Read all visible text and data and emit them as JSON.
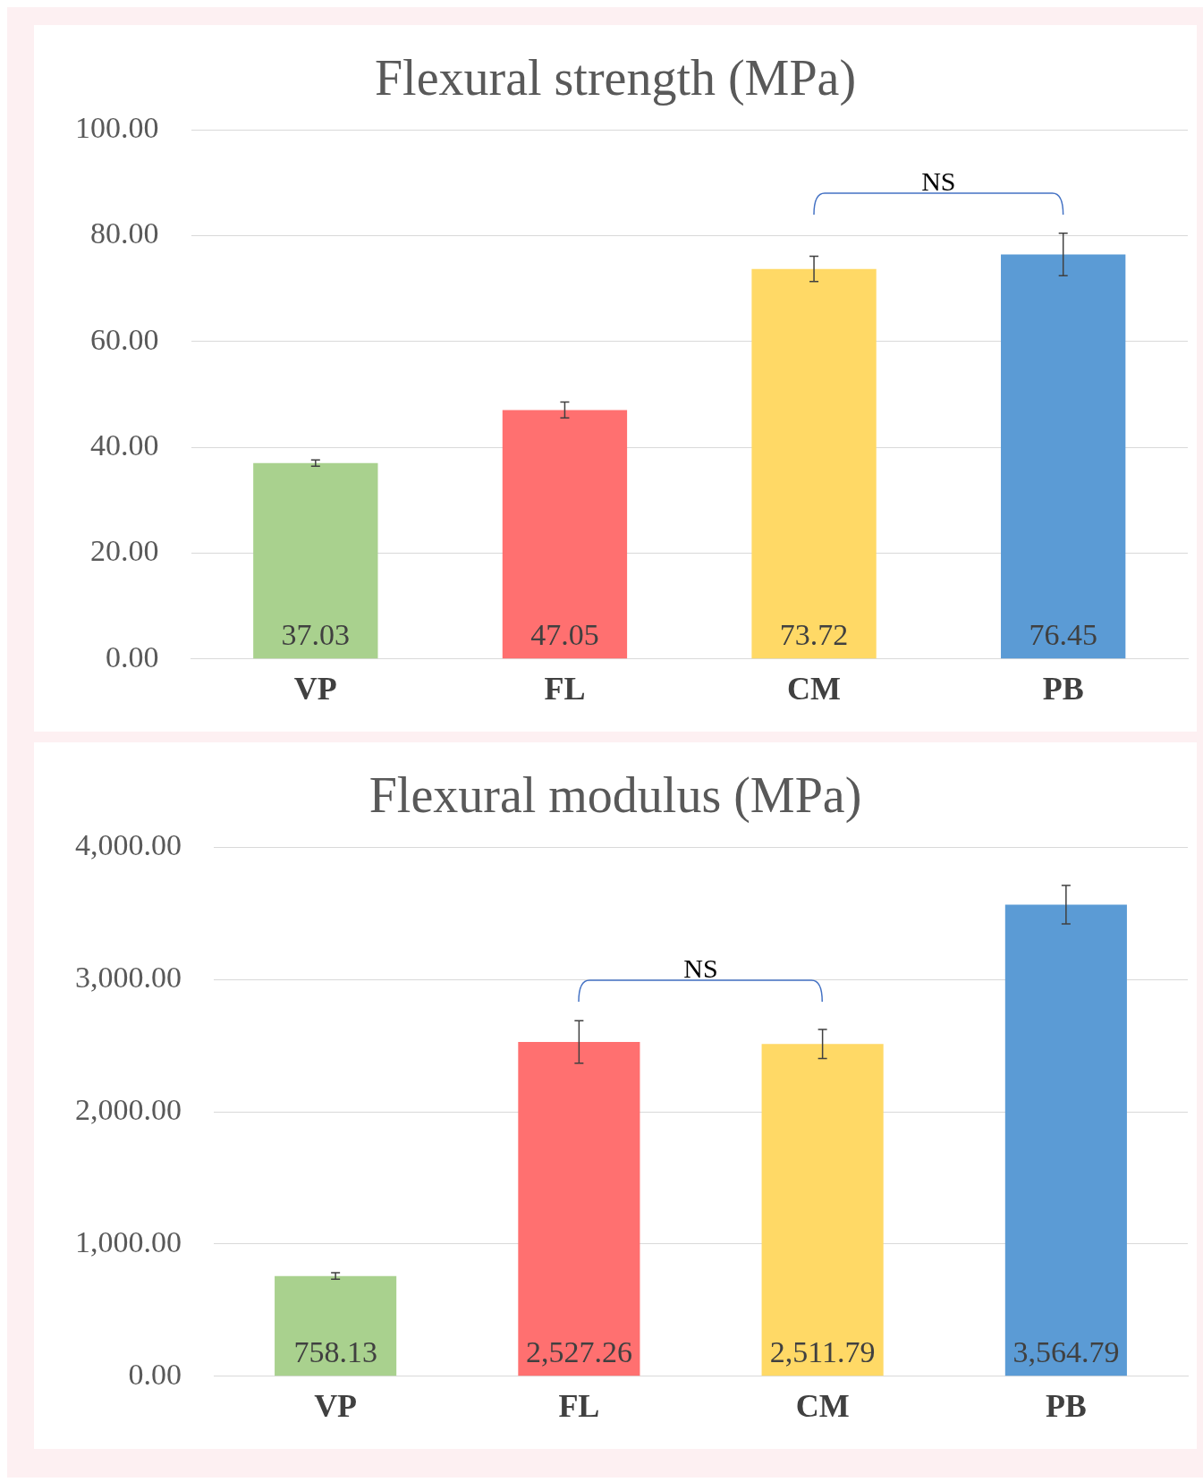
{
  "chart_data": [
    {
      "type": "bar",
      "title": "Flexural strength (MPa)",
      "categories": [
        "VP",
        "FL",
        "CM",
        "PB"
      ],
      "values": [
        37.03,
        47.05,
        73.72,
        76.45
      ],
      "colors": [
        "#a9d18e",
        "#ff7070",
        "#ffd966",
        "#5b9bd5"
      ],
      "errors": [
        0.6,
        1.5,
        2.4,
        4.0
      ],
      "value_labels": [
        "37.03",
        "47.05",
        "73.72",
        "76.45"
      ],
      "ylim": [
        0,
        100
      ],
      "yticks": [
        {
          "value": 0,
          "label": "0.00"
        },
        {
          "value": 20,
          "label": "20.00"
        },
        {
          "value": 40,
          "label": "40.00"
        },
        {
          "value": 60,
          "label": "60.00"
        },
        {
          "value": 80,
          "label": "80.00"
        },
        {
          "value": 100,
          "label": "100.00"
        }
      ],
      "grid": "y",
      "legend": false,
      "annotations": [
        "NS"
      ]
    },
    {
      "type": "bar",
      "title": "Flexural modulus (MPa)",
      "categories": [
        "VP",
        "FL",
        "CM",
        "PB"
      ],
      "values": [
        758.13,
        2527.26,
        2511.79,
        3564.79
      ],
      "colors": [
        "#a9d18e",
        "#ff7070",
        "#ffd966",
        "#5b9bd5"
      ],
      "errors": [
        25,
        160,
        110,
        145
      ],
      "value_labels": [
        "758.13",
        "2,527.26",
        "2,511.79",
        "3,564.79"
      ],
      "ylim": [
        0,
        4000
      ],
      "yticks": [
        {
          "value": 0,
          "label": "0.00"
        },
        {
          "value": 1000,
          "label": "1,000.00"
        },
        {
          "value": 2000,
          "label": "2,000.00"
        },
        {
          "value": 3000,
          "label": "3,000.00"
        },
        {
          "value": 4000,
          "label": "4,000.00"
        }
      ],
      "grid": "y",
      "legend": false,
      "annotations": [
        "NS"
      ]
    }
  ]
}
